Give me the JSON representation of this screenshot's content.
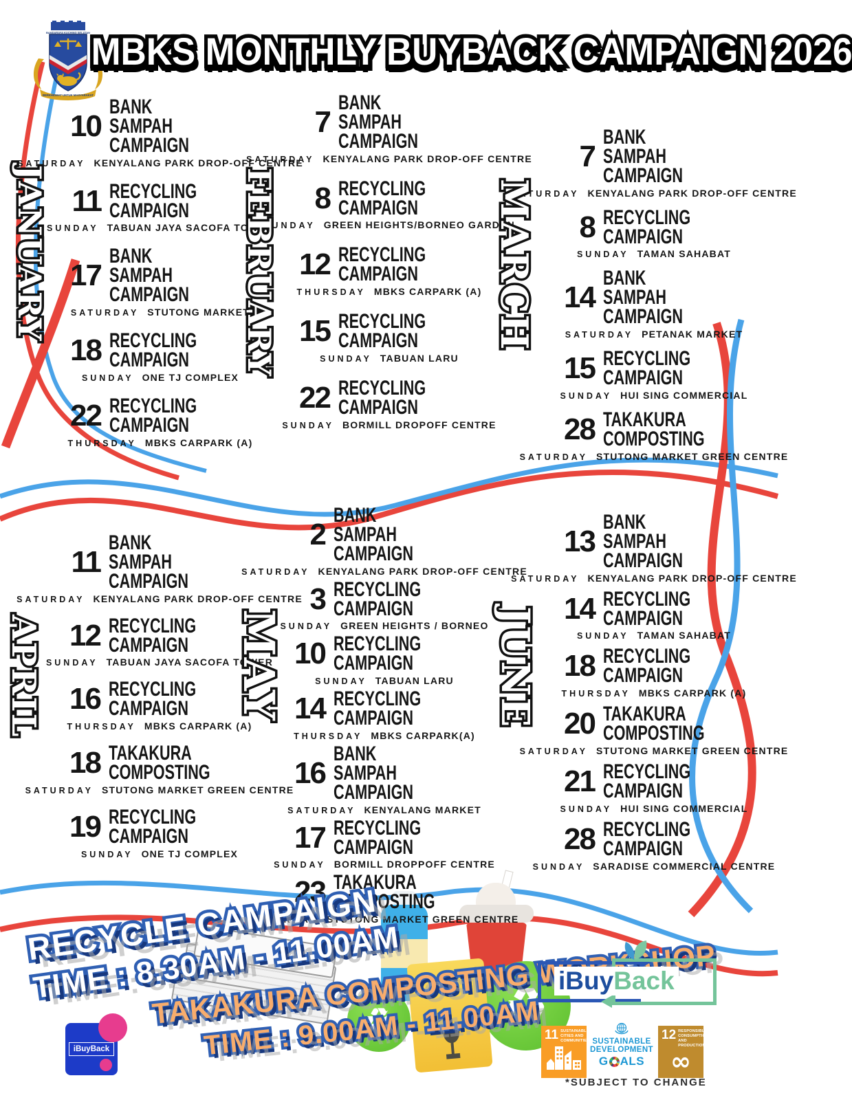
{
  "title": "MBKS MONTHLY BUYBACK CAMPAIGN 2026",
  "crest": {
    "name": "mbks-council-crest",
    "strip_text": "BANDARAYA KUCHING SELATAN",
    "motto": "BERKHIDMAT UNTUK MASYARAKAT"
  },
  "months": [
    {
      "name": "JANUARY",
      "events": [
        {
          "date": "10",
          "t1": "BANK SAMPAH",
          "t2": "CAMPAIGN",
          "day": "SATURDAY",
          "location": "KENYALANG PARK DROP-OFF CENTRE"
        },
        {
          "date": "11",
          "t1": "RECYCLING",
          "t2": "CAMPAIGN",
          "day": "SUNDAY",
          "location": "TABUAN JAYA SACOFA TOWER"
        },
        {
          "date": "17",
          "t1": "BANK SAMPAH",
          "t2": "CAMPAIGN",
          "day": "SATURDAY",
          "location": "STUTONG MARKET"
        },
        {
          "date": "18",
          "t1": "RECYCLING",
          "t2": "CAMPAIGN",
          "day": "SUNDAY",
          "location": "ONE TJ COMPLEX"
        },
        {
          "date": "22",
          "t1": "RECYCLING",
          "t2": "CAMPAIGN",
          "day": "THURSDAY",
          "location": "MBKS CARPARK (A)"
        }
      ]
    },
    {
      "name": "FEBRUARY",
      "events": [
        {
          "date": "7",
          "t1": "BANK SAMPAH",
          "t2": "CAMPAIGN",
          "day": "SATURDAY",
          "location": "KENYALANG PARK DROP-OFF CENTRE"
        },
        {
          "date": "8",
          "t1": "RECYCLING",
          "t2": "CAMPAIGN",
          "day": "SUNDAY",
          "location": "GREEN HEIGHTS/BORNEO GARDEN"
        },
        {
          "date": "12",
          "t1": "RECYCLING",
          "t2": "CAMPAIGN",
          "day": "THURSDAY",
          "location": "MBKS CARPARK (A)"
        },
        {
          "date": "15",
          "t1": "RECYCLING",
          "t2": "CAMPAIGN",
          "day": "SUNDAY",
          "location": "TABUAN LARU"
        },
        {
          "date": "22",
          "t1": "RECYCLING",
          "t2": "CAMPAIGN",
          "day": "SUNDAY",
          "location": "BORMILL DROPOFF CENTRE"
        }
      ]
    },
    {
      "name": "MARCH",
      "events": [
        {
          "date": "7",
          "t1": "BANK SAMPAH",
          "t2": "CAMPAIGN",
          "day": "SATURDAY",
          "location": "KENYALANG PARK DROP-OFF CENTRE"
        },
        {
          "date": "8",
          "t1": "RECYCLING",
          "t2": "CAMPAIGN",
          "day": "SUNDAY",
          "location": "TAMAN SAHABAT"
        },
        {
          "date": "14",
          "t1": "BANK SAMPAH",
          "t2": "CAMPAIGN",
          "day": "SATURDAY",
          "location": "PETANAK MARKET"
        },
        {
          "date": "15",
          "t1": "RECYCLING",
          "t2": "CAMPAIGN",
          "day": "SUNDAY",
          "location": "HUI SING COMMERCIAL"
        },
        {
          "date": "28",
          "t1": "TAKAKURA",
          "t2": "COMPOSTING",
          "day": "SATURDAY",
          "location": "STUTONG MARKET GREEN CENTRE"
        }
      ]
    },
    {
      "name": "APRIL",
      "events": [
        {
          "date": "11",
          "t1": "BANK SAMPAH",
          "t2": "CAMPAIGN",
          "day": "SATURDAY",
          "location": "KENYALANG PARK DROP-OFF CENTRE"
        },
        {
          "date": "12",
          "t1": "RECYCLING",
          "t2": "CAMPAIGN",
          "day": "SUNDAY",
          "location": "TABUAN JAYA SACOFA TOWER"
        },
        {
          "date": "16",
          "t1": "RECYCLING",
          "t2": "CAMPAIGN",
          "day": "THURSDAY",
          "location": "MBKS CARPARK (A)"
        },
        {
          "date": "18",
          "t1": "TAKAKURA",
          "t2": "COMPOSTING",
          "day": "SATURDAY",
          "location": "STUTONG MARKET GREEN CENTRE"
        },
        {
          "date": "19",
          "t1": "RECYCLING",
          "t2": "CAMPAIGN",
          "day": "SUNDAY",
          "location": "ONE TJ COMPLEX"
        }
      ]
    },
    {
      "name": "MAY",
      "events": [
        {
          "date": "2",
          "t1": "BANK SAMPAH",
          "t2": "CAMPAIGN",
          "day": "SATURDAY",
          "location": "KENYALANG PARK DROP-OFF CENTRE"
        },
        {
          "date": "3",
          "t1": "RECYCLING",
          "t2": "CAMPAIGN",
          "day": "SUNDAY",
          "location": "GREEN HEIGHTS / BORNEO"
        },
        {
          "date": "10",
          "t1": "RECYCLING",
          "t2": "CAMPAIGN",
          "day": "SUNDAY",
          "location": "TABUAN LARU"
        },
        {
          "date": "14",
          "t1": "RECYCLING",
          "t2": "CAMPAIGN",
          "day": "THURSDAY",
          "location": "MBKS CARPARK(A)"
        },
        {
          "date": "16",
          "t1": "BANK SAMPAH",
          "t2": "CAMPAIGN",
          "day": "SATURDAY",
          "location": "KENYALANG MARKET"
        },
        {
          "date": "17",
          "t1": "RECYCLING",
          "t2": "CAMPAIGN",
          "day": "SUNDAY",
          "location": "BORMILL DROPPOFF CENTRE"
        },
        {
          "date": "23",
          "t1": "TAKAKURA",
          "t2": "COMPOSTING",
          "day": "SATURDAY",
          "location": "STUTONG MARKET GREEN CENTRE"
        }
      ]
    },
    {
      "name": "JUNE",
      "events": [
        {
          "date": "13",
          "t1": "BANK SAMPAH",
          "t2": "CAMPAIGN",
          "day": "SATURDAY",
          "location": "KENYALANG PARK DROP-OFF CENTRE"
        },
        {
          "date": "14",
          "t1": "RECYCLING",
          "t2": "CAMPAIGN",
          "day": "SUNDAY",
          "location": "TAMAN SAHABAT"
        },
        {
          "date": "18",
          "t1": "RECYCLING",
          "t2": "CAMPAIGN",
          "day": "THURSDAY",
          "location": "MBKS CARPARK (A)"
        },
        {
          "date": "20",
          "t1": "TAKAKURA",
          "t2": "COMPOSTING",
          "day": "SATURDAY",
          "location": "STUTONG MARKET GREEN CENTRE"
        },
        {
          "date": "21",
          "t1": "RECYCLING",
          "t2": "CAMPAIGN",
          "day": "SUNDAY",
          "location": "HUI SING COMMERCIAL"
        },
        {
          "date": "28",
          "t1": "RECYCLING",
          "t2": "CAMPAIGN",
          "day": "SUNDAY",
          "location": "SARADISE COMMERCIAL CENTRE"
        }
      ]
    }
  ],
  "footer": {
    "recycle_line1": "RECYCLE CAMPAIGN",
    "recycle_line2": "TIME : 8.30AM - 11.00AM",
    "takakura_line1": "TAKAKURA COMPOSTING WORKSHOP",
    "takakura_line2": "TIME : 9.00AM - 11.00AM",
    "subject_note": "*SUBJECT TO CHANGE",
    "ibuyback": {
      "part1": "iBuy",
      "part2": "Back"
    },
    "ibuyback_small": "iBuyBack",
    "sdg11": {
      "number": "11",
      "label": "SUSTAINABLE CITIES AND COMMUNITIES"
    },
    "sdg12": {
      "number": "12",
      "label": "RESPONSIBLE CONSUMPTION AND PRODUCTION",
      "symbol": "∞"
    },
    "sdg_logo": {
      "word1": "SUSTAINABLE",
      "word2": "DEVELOPMENT",
      "goals_g": "G",
      "goals_rest": "ALS"
    },
    "recycle_symbol": "♻"
  },
  "colors": {
    "ribbon_red": "#e8453c",
    "ribbon_blue": "#4aa3e8",
    "sticker_blue": "#2f5fb3",
    "sticker_peach": "#f8ad6d",
    "ibb_blue": "#1d4e9e",
    "ibb_green": "#74c49a",
    "sdg11_orange": "#f99d26",
    "sdg12_gold": "#bf8b2e",
    "sdg_blue": "#1c97d4"
  }
}
